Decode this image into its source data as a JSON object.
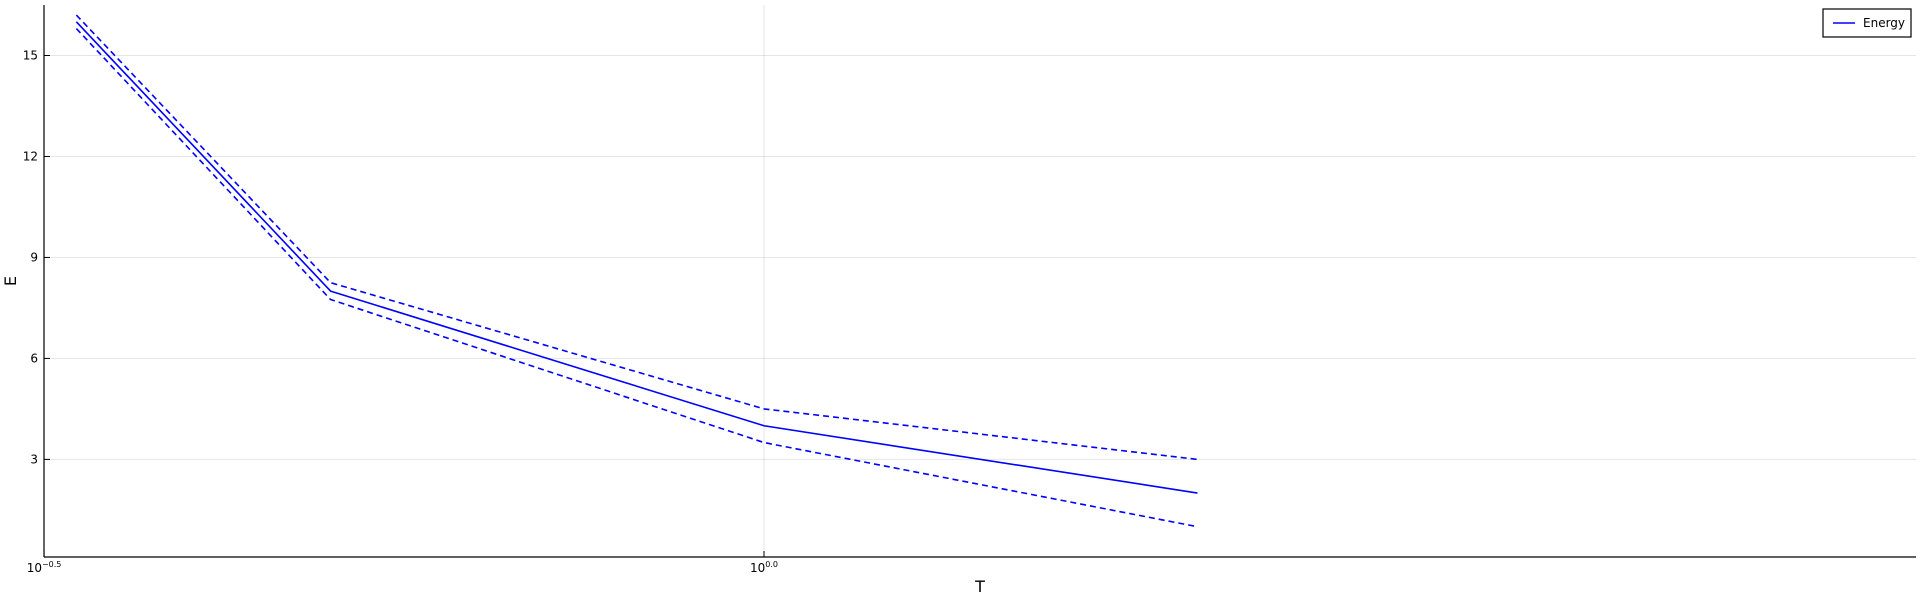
{
  "chart_data": {
    "type": "line",
    "title": "",
    "xlabel": "T",
    "ylabel": "E",
    "x_scale": "log10",
    "xlim": [
      0.3162,
      6.31
    ],
    "ylim": [
      0.1,
      16.5
    ],
    "x_ticks": [
      {
        "value": 0.31623,
        "base": "10",
        "exponent": "−0.5"
      },
      {
        "value": 1.0,
        "base": "10",
        "exponent": "0.0"
      }
    ],
    "y_ticks": [
      {
        "value": 3,
        "label": "3"
      },
      {
        "value": 6,
        "label": "6"
      },
      {
        "value": 9,
        "label": "9"
      },
      {
        "value": 12,
        "label": "12"
      },
      {
        "value": 15,
        "label": "15"
      }
    ],
    "grid": true,
    "legend_position": "top-right",
    "series": [
      {
        "name": "Energy",
        "color": "#0000ff",
        "style": "solid",
        "x": [
          0.333,
          0.5,
          1.0,
          2.0
        ],
        "y": [
          16.0,
          8.0,
          4.0,
          2.0
        ]
      },
      {
        "color": "#0000ff",
        "style": "dashed",
        "x": [
          0.333,
          0.5,
          1.0,
          2.0
        ],
        "y": [
          16.2,
          8.25,
          4.5,
          3.0
        ]
      },
      {
        "color": "#0000ff",
        "style": "dashed",
        "x": [
          0.333,
          0.5,
          1.0,
          2.0
        ],
        "y": [
          15.8,
          7.75,
          3.5,
          1.0
        ]
      }
    ]
  }
}
